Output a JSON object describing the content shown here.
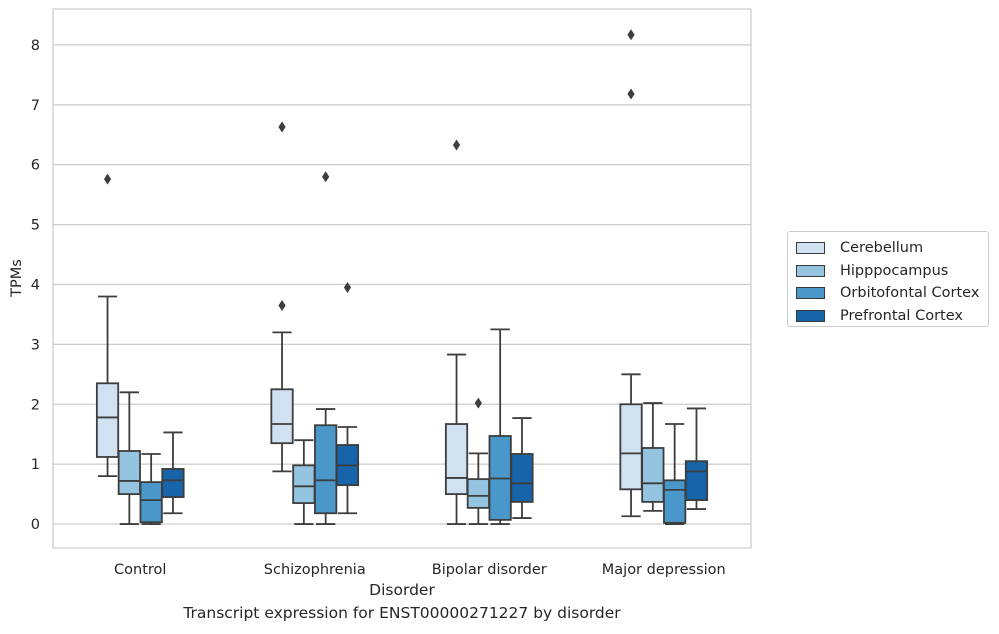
{
  "chart_data": {
    "type": "box",
    "title": "Transcript expression for ENST00000271227 by disorder",
    "xlabel": "Disorder",
    "ylabel": "TPMs",
    "categories": [
      "Control",
      "Schizophrenia",
      "Bipolar disorder",
      "Major depression"
    ],
    "ylim": [
      -0.4,
      8.6
    ],
    "yticks": [
      "0",
      "1",
      "2",
      "3",
      "4",
      "5",
      "6",
      "7",
      "8"
    ],
    "grid": true,
    "legend_position": "right",
    "series": [
      {
        "name": "Cerebellum",
        "color": "#d0e1f2",
        "boxes": [
          {
            "whislo": 0.8,
            "q1": 1.12,
            "med": 1.78,
            "q3": 2.35,
            "whishi": 3.8,
            "fliers": [
              5.76
            ]
          },
          {
            "whislo": 0.88,
            "q1": 1.35,
            "med": 1.67,
            "q3": 2.25,
            "whishi": 3.2,
            "fliers": [
              3.65,
              6.63
            ]
          },
          {
            "whislo": 0.0,
            "q1": 0.5,
            "med": 0.77,
            "q3": 1.67,
            "whishi": 2.83,
            "fliers": [
              6.33
            ]
          },
          {
            "whislo": 0.13,
            "q1": 0.58,
            "med": 1.18,
            "q3": 2.0,
            "whishi": 2.5,
            "fliers": [
              7.18,
              8.17
            ]
          }
        ]
      },
      {
        "name": "Hipppocampus",
        "color": "#94c4df",
        "boxes": [
          {
            "whislo": 0.0,
            "q1": 0.5,
            "med": 0.72,
            "q3": 1.22,
            "whishi": 2.2,
            "fliers": []
          },
          {
            "whislo": 0.0,
            "q1": 0.35,
            "med": 0.63,
            "q3": 0.98,
            "whishi": 1.4,
            "fliers": []
          },
          {
            "whislo": 0.0,
            "q1": 0.27,
            "med": 0.47,
            "q3": 0.75,
            "whishi": 1.18,
            "fliers": [
              2.02
            ]
          },
          {
            "whislo": 0.22,
            "q1": 0.37,
            "med": 0.68,
            "q3": 1.27,
            "whishi": 2.02,
            "fliers": []
          }
        ]
      },
      {
        "name": "Orbitofontal Cortex",
        "color": "#4a98c9",
        "boxes": [
          {
            "whislo": 0.0,
            "q1": 0.03,
            "med": 0.4,
            "q3": 0.7,
            "whishi": 1.17,
            "fliers": []
          },
          {
            "whislo": 0.0,
            "q1": 0.18,
            "med": 0.73,
            "q3": 1.65,
            "whishi": 1.92,
            "fliers": [
              5.8
            ]
          },
          {
            "whislo": 0.0,
            "q1": 0.07,
            "med": 0.76,
            "q3": 1.47,
            "whishi": 3.25,
            "fliers": []
          },
          {
            "whislo": 0.0,
            "q1": 0.02,
            "med": 0.57,
            "q3": 0.73,
            "whishi": 1.67,
            "fliers": []
          }
        ]
      },
      {
        "name": "Prefrontal Cortex",
        "color": "#1764ab",
        "boxes": [
          {
            "whislo": 0.18,
            "q1": 0.45,
            "med": 0.73,
            "q3": 0.92,
            "whishi": 1.53,
            "fliers": []
          },
          {
            "whislo": 0.18,
            "q1": 0.65,
            "med": 0.98,
            "q3": 1.32,
            "whishi": 1.62,
            "fliers": [
              3.95
            ]
          },
          {
            "whislo": 0.1,
            "q1": 0.37,
            "med": 0.68,
            "q3": 1.17,
            "whishi": 1.77,
            "fliers": []
          },
          {
            "whislo": 0.25,
            "q1": 0.4,
            "med": 0.88,
            "q3": 1.05,
            "whishi": 1.93,
            "fliers": []
          }
        ]
      }
    ]
  }
}
